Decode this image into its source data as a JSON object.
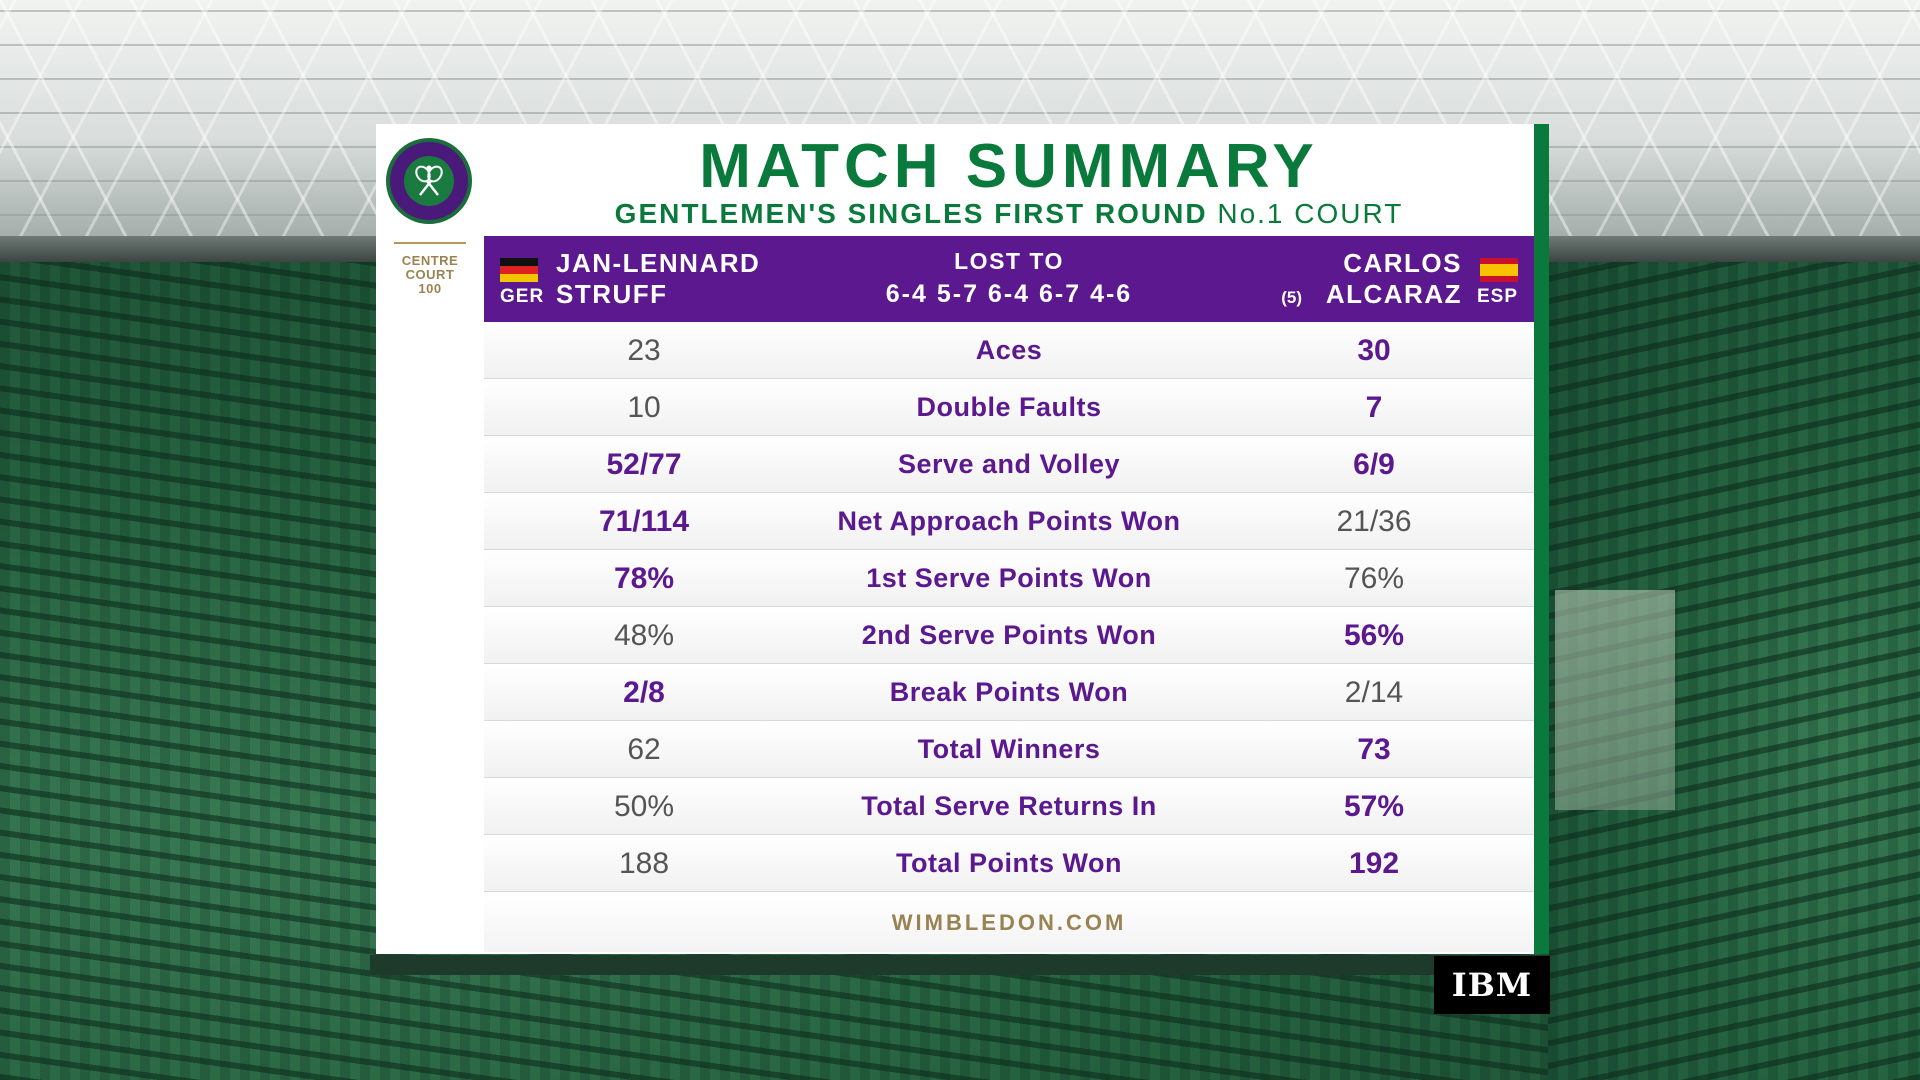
{
  "title": "MATCH SUMMARY",
  "subtitle": {
    "event": "GENTLEMEN'S SINGLES FIRST ROUND",
    "court": "No.1 COURT"
  },
  "logo": {
    "centre_court_line1": "CENTRE",
    "centre_court_line2": "COURT",
    "centre_court_line3": "100"
  },
  "player1": {
    "first_name": "JAN-LENNARD",
    "last_name": "STRUFF",
    "country": "GER"
  },
  "player2": {
    "first_name": "CARLOS",
    "last_name": "ALCARAZ",
    "country": "ESP",
    "seed": "(5)"
  },
  "result": "LOST TO",
  "score": "6-4 5-7 6-4 6-7 4-6",
  "stats": [
    {
      "label": "Aces",
      "p1": "23",
      "p2": "30",
      "highlight": "p2"
    },
    {
      "label": "Double Faults",
      "p1": "10",
      "p2": "7",
      "highlight": "p2"
    },
    {
      "label": "Serve and Volley",
      "p1": "52/77",
      "p2": "6/9",
      "highlight": "both"
    },
    {
      "label": "Net Approach Points Won",
      "p1": "71/114",
      "p2": "21/36",
      "highlight": "p1"
    },
    {
      "label": "1st Serve Points Won",
      "p1": "78%",
      "p2": "76%",
      "highlight": "p1"
    },
    {
      "label": "2nd Serve Points Won",
      "p1": "48%",
      "p2": "56%",
      "highlight": "p2"
    },
    {
      "label": "Break Points Won",
      "p1": "2/8",
      "p2": "2/14",
      "highlight": "p1"
    },
    {
      "label": "Total Winners",
      "p1": "62",
      "p2": "73",
      "highlight": "p2"
    },
    {
      "label": "Total Serve Returns In",
      "p1": "50%",
      "p2": "57%",
      "highlight": "p2"
    },
    {
      "label": "Total Points Won",
      "p1": "188",
      "p2": "192",
      "highlight": "p2"
    }
  ],
  "footer": "WIMBLEDON.COM",
  "sponsor": "IBM",
  "colors": {
    "purple": "#5c188e",
    "green": "#0a7a3c",
    "gold": "#9a8352"
  }
}
